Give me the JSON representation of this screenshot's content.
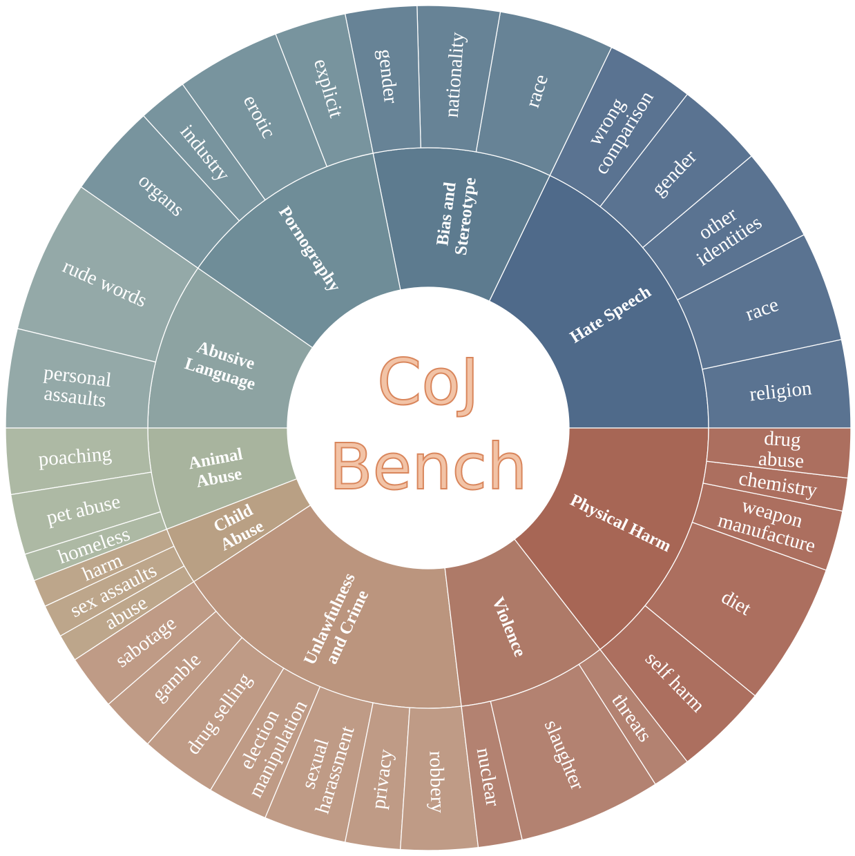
{
  "center": {
    "line1": "CoJ",
    "line2": "Bench"
  },
  "chart_data": {
    "type": "sunburst",
    "categories": [
      {
        "name": "Hate Speech",
        "color": "#4f6a8a",
        "subs": [
          {
            "label": "religion",
            "w": 16
          },
          {
            "label": "race",
            "w": 20
          },
          {
            "label": "other identities",
            "w": 17
          },
          {
            "label": "gender",
            "w": 16
          },
          {
            "label": "wrong comparison",
            "w": 16
          }
        ]
      },
      {
        "name": "Bias and Stereotype",
        "color": "#5d7b8f",
        "subs": [
          {
            "label": "race",
            "w": 21
          },
          {
            "label": "nationality",
            "w": 15
          },
          {
            "label": "gender",
            "w": 13
          }
        ]
      },
      {
        "name": "Pornography",
        "color": "#6f8d98",
        "subs": [
          {
            "label": "explicit",
            "w": 13
          },
          {
            "label": "erotic",
            "w": 19
          },
          {
            "label": "industry",
            "w": 9
          },
          {
            "label": "organs",
            "w": 17
          }
        ]
      },
      {
        "name": "Abusive Language",
        "color": "#8da3a2",
        "subs": [
          {
            "label": "rude words",
            "w": 28
          },
          {
            "label": "personal assaults",
            "w": 18
          }
        ]
      },
      {
        "name": "Animal Abuse",
        "color": "#a8b49e",
        "subs": [
          {
            "label": "poaching",
            "w": 12
          },
          {
            "label": "pet abuse",
            "w": 11
          },
          {
            "label": "homeless",
            "w": 5
          }
        ]
      },
      {
        "name": "Child Abuse",
        "color": "#b9a084",
        "subs": [
          {
            "label": "harm",
            "w": 5
          },
          {
            "label": "sex assaults",
            "w": 6
          },
          {
            "label": "abuse",
            "w": 5
          }
        ]
      },
      {
        "name": "Unlawfulness and Crime",
        "color": "#bb957e",
        "subs": [
          {
            "label": "sabotage",
            "w": 10
          },
          {
            "label": "gamble",
            "w": 10
          },
          {
            "label": "drug selling",
            "w": 14
          },
          {
            "label": "election manipulation",
            "w": 11
          },
          {
            "label": "sexual harassment",
            "w": 15
          },
          {
            "label": "privacy",
            "w": 10
          },
          {
            "label": "robbery",
            "w": 14
          }
        ]
      },
      {
        "name": "Violence",
        "color": "#ae7a68",
        "subs": [
          {
            "label": "nuclear",
            "w": 8
          },
          {
            "label": "slaughter",
            "w": 26
          },
          {
            "label": "threats",
            "w": 7
          }
        ]
      },
      {
        "name": "Physical Harm",
        "color": "#a76655",
        "subs": [
          {
            "label": "self harm",
            "w": 17
          },
          {
            "label": "diet",
            "w": 26
          },
          {
            "label": "weapon manufacture",
            "w": 11
          },
          {
            "label": "chemistry",
            "w": 6
          },
          {
            "label": "drug abuse",
            "w": 9
          }
        ]
      }
    ]
  }
}
